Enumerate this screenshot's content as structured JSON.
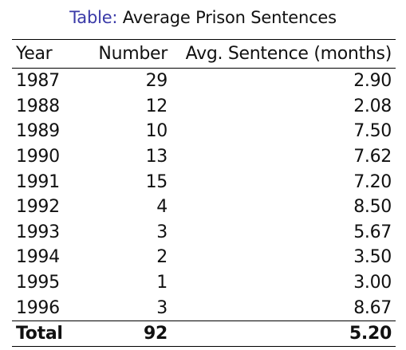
{
  "caption": {
    "prefix": "Table:",
    "title": "Average Prison Sentences"
  },
  "table": {
    "headers": [
      "Year",
      "Number",
      "Avg. Sentence (months)"
    ],
    "rows": [
      [
        "1987",
        "29",
        "2.90"
      ],
      [
        "1988",
        "12",
        "2.08"
      ],
      [
        "1989",
        "10",
        "7.50"
      ],
      [
        "1990",
        "13",
        "7.62"
      ],
      [
        "1991",
        "15",
        "7.20"
      ],
      [
        "1992",
        "4",
        "8.50"
      ],
      [
        "1993",
        "3",
        "5.67"
      ],
      [
        "1994",
        "2",
        "3.50"
      ],
      [
        "1995",
        "1",
        "3.00"
      ],
      [
        "1996",
        "3",
        "8.67"
      ]
    ],
    "total": [
      "Total",
      "92",
      "5.20"
    ]
  }
}
